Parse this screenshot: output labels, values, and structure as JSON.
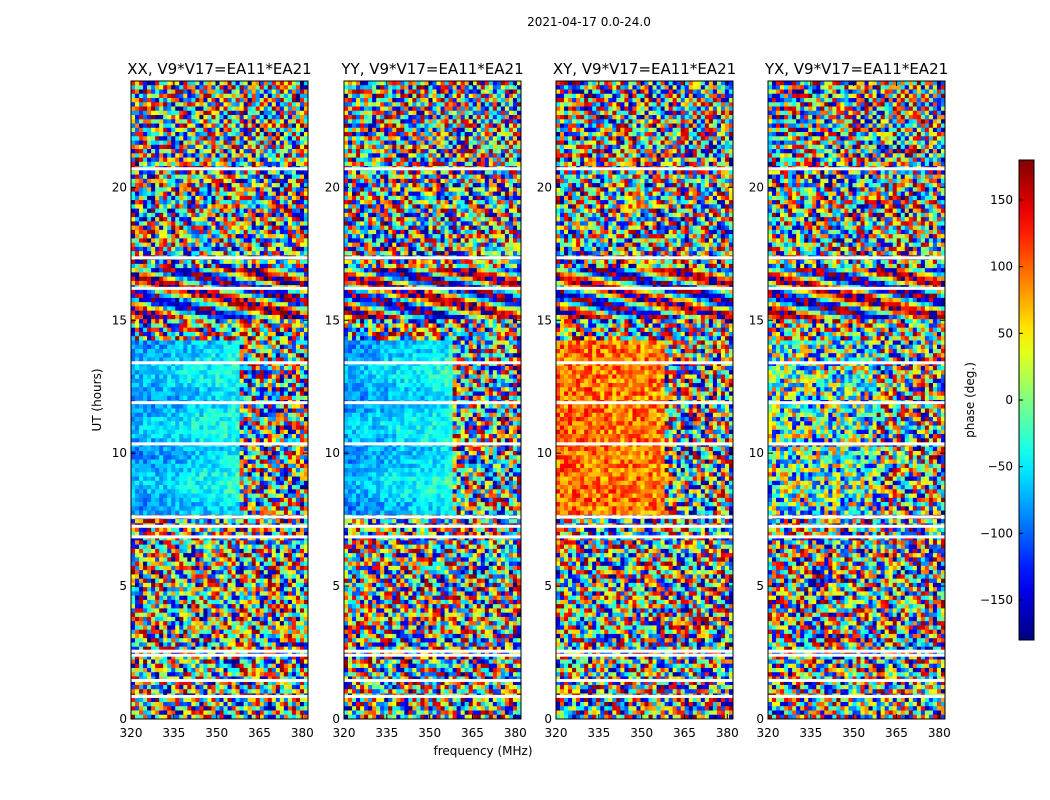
{
  "chart_data": {
    "type": "heatmap",
    "suptitle": "2021-04-17 0.0-24.0",
    "xlabel": "frequency (MHz)",
    "ylabel": "UT (hours)",
    "xlim": [
      320,
      382
    ],
    "ylim": [
      0,
      24
    ],
    "xticks": [
      320,
      335,
      350,
      365,
      380
    ],
    "yticks": [
      0,
      5,
      10,
      15,
      20
    ],
    "panels": [
      {
        "title": "XX, V9*V17=EA11*EA21",
        "pol": "XX"
      },
      {
        "title": "YY, V9*V17=EA11*EA21",
        "pol": "YY"
      },
      {
        "title": "XY, V9*V17=EA11*EA21",
        "pol": "XY"
      },
      {
        "title": "YX, V9*V17=EA11*EA21",
        "pol": "YX"
      }
    ],
    "colorbar": {
      "label": "phase (deg.)",
      "colormap": "jet",
      "range": [
        -180,
        180
      ],
      "ticks": [
        150,
        100,
        50,
        0,
        -50,
        -100,
        -150
      ],
      "tick_labels": [
        "150",
        "100",
        "50",
        "0",
        "−50",
        "−100",
        "−150"
      ]
    },
    "flagged_gaps_ut": [
      0.85,
      1.45,
      2.4,
      2.55,
      6.85,
      7.25,
      7.6,
      10.35,
      11.9,
      13.4,
      16.2,
      17.35,
      20.7
    ]
  }
}
